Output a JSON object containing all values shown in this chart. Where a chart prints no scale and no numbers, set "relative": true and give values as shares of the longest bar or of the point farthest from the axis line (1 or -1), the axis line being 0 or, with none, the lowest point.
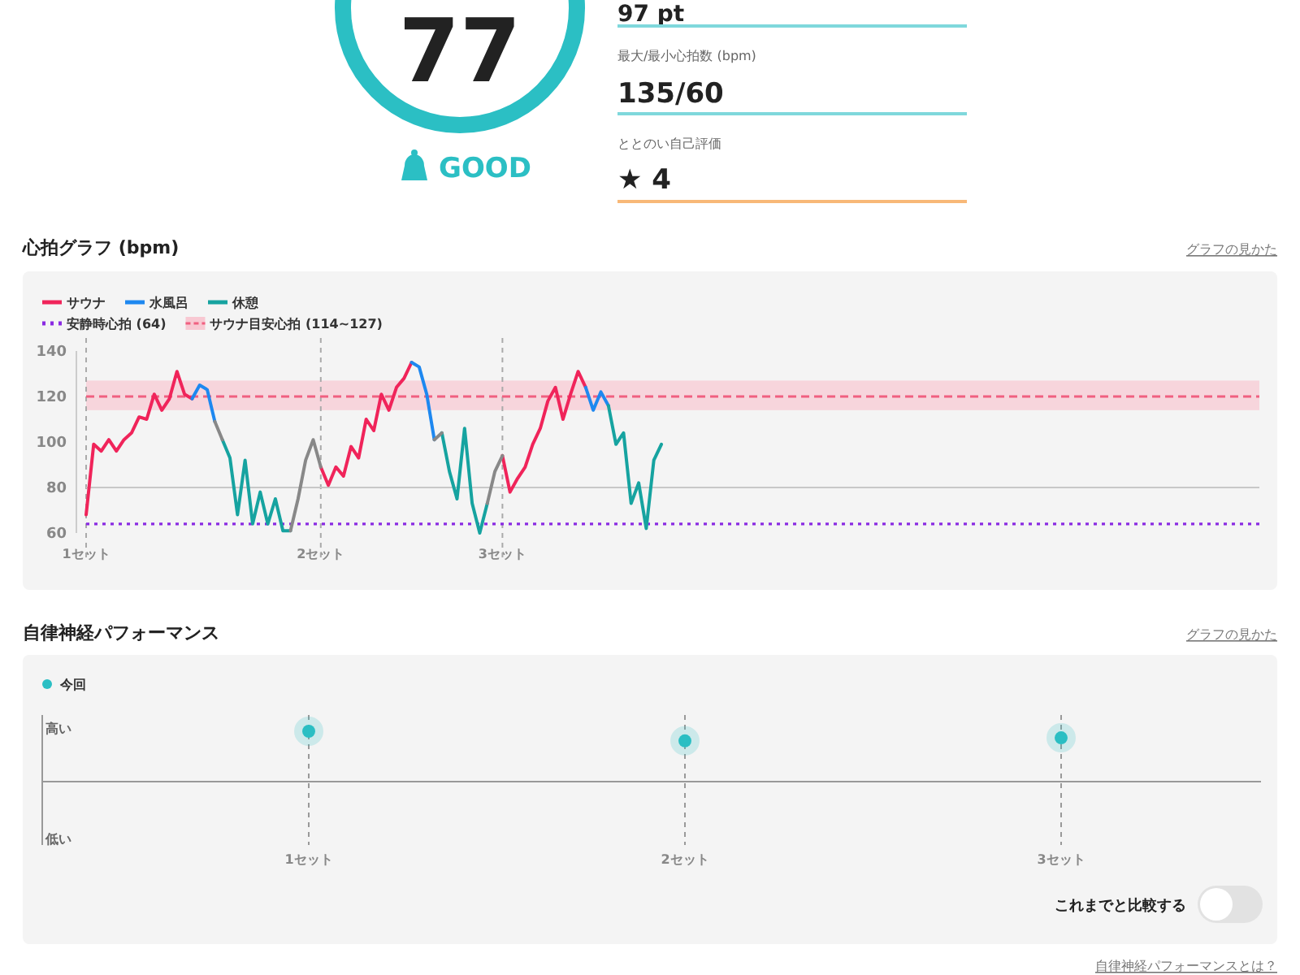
{
  "chart_data": [
    {
      "type": "other",
      "annotations": [
        "77",
        "GOOD",
        "97 pt",
        "最大/最小心拍数 (bpm)",
        "135/60",
        "ととのい自己評価",
        "★ 4"
      ]
    },
    {
      "type": "line",
      "title": "心拍グラフ (bpm)",
      "annotations": [
        "グラフの見かた"
      ],
      "legend": "top left",
      "grid": "x",
      "ylim": [
        60,
        140
      ],
      "yticks": [
        60,
        80,
        100,
        120,
        140
      ],
      "line_style": "solid",
      "marker": "none",
      "categories": [
        "1セット",
        null,
        null,
        null,
        null,
        null,
        null,
        null,
        null,
        null,
        null,
        null,
        null,
        null,
        null,
        null,
        null,
        null,
        null,
        null,
        null,
        null,
        null,
        null,
        null,
        null,
        null,
        null,
        null,
        null,
        null,
        "2セット",
        null,
        null,
        null,
        null,
        null,
        null,
        null,
        null,
        null,
        null,
        null,
        null,
        null,
        null,
        null,
        null,
        null,
        null,
        null,
        null,
        null,
        null,
        null,
        "3セット",
        null,
        null,
        null,
        null,
        null,
        null,
        null,
        null,
        null,
        null,
        null,
        null,
        null,
        null,
        null,
        null,
        null,
        null,
        null,
        null,
        null,
        null,
        null,
        null,
        null,
        null,
        null,
        null,
        null,
        null,
        null,
        null,
        null,
        null,
        null,
        null,
        null,
        null,
        null,
        null,
        null,
        null,
        null,
        null,
        null,
        null,
        null,
        null,
        null,
        null,
        null,
        null,
        null,
        null,
        null,
        null,
        null,
        null,
        null,
        null,
        null,
        null,
        null,
        null,
        null,
        null,
        null,
        null,
        null,
        null,
        null,
        null,
        null,
        null,
        null,
        null,
        null,
        null,
        null,
        null,
        null,
        null,
        null,
        null,
        null,
        null,
        null,
        null,
        null,
        null,
        null,
        null,
        null,
        null,
        null,
        null,
        null,
        null,
        null,
        null
      ],
      "series": [
        {
          "name": "サウナ",
          "color": "#f0245a",
          "values": [
            68,
            99,
            96,
            101,
            96,
            101,
            104,
            111,
            110,
            121,
            114,
            119,
            131,
            121,
            119,
            null,
            null,
            null,
            null,
            null,
            null,
            null,
            null,
            null,
            null,
            null,
            null,
            null,
            null,
            null,
            null,
            89,
            81,
            89,
            85,
            98,
            93,
            110,
            105,
            121,
            114,
            124,
            128,
            135,
            null,
            null,
            null,
            null,
            null,
            null,
            null,
            null,
            null,
            null,
            null,
            94,
            78,
            84,
            89,
            99,
            106,
            118,
            124,
            110,
            121,
            131,
            124,
            null,
            null,
            null,
            null,
            null,
            null,
            null,
            null,
            null,
            null,
            null,
            null,
            null,
            null,
            null,
            null,
            null,
            null,
            null,
            null,
            null,
            null,
            null,
            null,
            null,
            null,
            null,
            null,
            null,
            null,
            null,
            null,
            null,
            null,
            null,
            null,
            null,
            null,
            null,
            null,
            null,
            null,
            null,
            null,
            null,
            null,
            null,
            null,
            null,
            null,
            null,
            null,
            null,
            null,
            null,
            null,
            null,
            null,
            null,
            null,
            null,
            null,
            null,
            null,
            null,
            null,
            null,
            null,
            null,
            null,
            null,
            null,
            null,
            null,
            null,
            null,
            null,
            null,
            null,
            null,
            null,
            null,
            null,
            null,
            null,
            null,
            null,
            null,
            null
          ]
        },
        {
          "name": "水風呂",
          "color": "#1e88f0",
          "values": [
            null,
            null,
            null,
            null,
            null,
            null,
            null,
            null,
            null,
            null,
            null,
            null,
            null,
            null,
            119,
            125,
            123,
            109,
            null,
            null,
            null,
            null,
            null,
            null,
            null,
            null,
            null,
            null,
            null,
            null,
            null,
            null,
            null,
            null,
            null,
            null,
            null,
            null,
            null,
            null,
            null,
            null,
            null,
            135,
            133,
            121,
            101,
            null,
            null,
            null,
            null,
            null,
            null,
            null,
            null,
            null,
            null,
            null,
            null,
            null,
            null,
            null,
            null,
            null,
            null,
            null,
            124,
            114,
            122,
            116,
            null,
            null,
            null,
            null,
            null,
            null,
            null,
            null,
            null,
            null,
            null,
            null,
            null,
            null,
            null,
            null,
            null,
            null,
            null,
            null,
            null,
            null,
            null,
            null,
            null,
            null,
            null,
            null,
            null,
            null,
            null,
            null,
            null,
            null,
            null,
            null,
            null,
            null,
            null,
            null,
            null,
            null,
            null,
            null,
            null,
            null,
            null,
            null,
            null,
            null,
            null,
            null,
            null,
            null,
            null,
            null,
            null,
            null,
            null,
            null,
            null,
            null,
            null,
            null,
            null,
            null,
            null,
            null,
            null,
            null,
            null,
            null,
            null,
            null,
            null,
            null,
            null,
            null,
            null,
            null,
            null,
            null,
            null,
            null,
            null,
            null
          ]
        },
        {
          "name": "休憩",
          "color": "#16a3a0",
          "values": [
            null,
            null,
            null,
            null,
            null,
            null,
            null,
            null,
            null,
            null,
            null,
            null,
            null,
            null,
            null,
            null,
            null,
            null,
            101,
            93,
            68,
            92,
            64,
            78,
            64,
            75,
            61,
            61,
            null,
            null,
            null,
            null,
            null,
            null,
            null,
            null,
            null,
            null,
            null,
            null,
            null,
            null,
            null,
            null,
            null,
            null,
            null,
            104,
            87,
            75,
            106,
            73,
            60,
            73,
            null,
            null,
            null,
            null,
            null,
            null,
            null,
            null,
            null,
            null,
            null,
            null,
            null,
            null,
            null,
            116,
            99,
            104,
            73,
            82,
            62,
            92,
            99,
            null,
            null,
            null,
            null,
            null,
            null,
            null,
            null,
            null,
            null,
            null,
            null,
            null,
            null,
            null,
            null,
            null,
            null,
            null,
            null,
            null,
            null,
            null,
            null,
            null,
            null,
            null,
            null,
            null,
            null,
            null,
            null,
            null,
            null,
            null,
            null,
            null,
            null,
            null,
            null,
            null,
            null,
            null,
            null,
            null,
            null,
            null,
            null,
            null,
            null,
            null,
            null,
            null,
            null,
            null,
            null,
            null,
            null,
            null,
            null,
            null,
            null,
            null,
            null,
            null,
            null,
            null,
            null,
            null,
            null,
            null,
            null,
            null,
            null,
            null,
            null,
            null,
            null,
            null
          ]
        },
        {
          "color": "#888888",
          "values": [
            null,
            null,
            null,
            null,
            null,
            null,
            null,
            null,
            null,
            null,
            null,
            null,
            null,
            null,
            null,
            null,
            null,
            109,
            101,
            null,
            null,
            null,
            null,
            null,
            null,
            null,
            null,
            61,
            75,
            92,
            101,
            89,
            null,
            null,
            null,
            null,
            null,
            null,
            null,
            null,
            null,
            null,
            null,
            null,
            null,
            null,
            101,
            104,
            null,
            null,
            null,
            null,
            null,
            73,
            87,
            94,
            null,
            null,
            null,
            null,
            null,
            null,
            null,
            null,
            null,
            null,
            null,
            null,
            null,
            null,
            null,
            null,
            null,
            null,
            null,
            null,
            null,
            null,
            null,
            null,
            null,
            null,
            null,
            null,
            null,
            null,
            null,
            null,
            null,
            null,
            null,
            null,
            null,
            null,
            null,
            null,
            null,
            null,
            null,
            null,
            null,
            null,
            null,
            null,
            null,
            null,
            null,
            null,
            null,
            null,
            null,
            null,
            null,
            null,
            null,
            null,
            null,
            null,
            null,
            null,
            null,
            null,
            null,
            null,
            null,
            null,
            null,
            null,
            null,
            null,
            null,
            null,
            null,
            null,
            null,
            null,
            null,
            null,
            null,
            null,
            null,
            null,
            null,
            null,
            null,
            null,
            null,
            null,
            null,
            null,
            null,
            null,
            null,
            null,
            null,
            null
          ]
        }
      ],
      "ref_lines": [
        {
          "axis": "y",
          "value": 64,
          "label": "安静時心拍 (64)",
          "color": "#8a2be2",
          "line_style": "dotted"
        },
        {
          "axis": "y",
          "value": 80,
          "color": "#c8c8c8",
          "line_style": "solid"
        },
        {
          "axis": "y",
          "value": 120,
          "color": "#f06080",
          "line_style": "dashed"
        }
      ],
      "bands": [
        {
          "axis": "y",
          "from": 114,
          "to": 127,
          "label": "サウナ目安心拍 (114~127)",
          "color": "#f8c8d2"
        }
      ]
    },
    {
      "type": "scatter",
      "title": "自律神経パフォーマンス",
      "annotations": [
        "グラフの見かた",
        "これまでと比較する",
        "自律神経パフォーマンスとは？",
        "高い",
        "低い"
      ],
      "legend": "top left",
      "grid": "x",
      "marker": "circle",
      "relative": true,
      "categories": [
        "1セット",
        "2セット",
        "3セット"
      ],
      "series": [
        {
          "name": "今回",
          "color": "#2bbfc4",
          "values": [
            1,
            0.81,
            0.87
          ]
        }
      ]
    }
  ]
}
